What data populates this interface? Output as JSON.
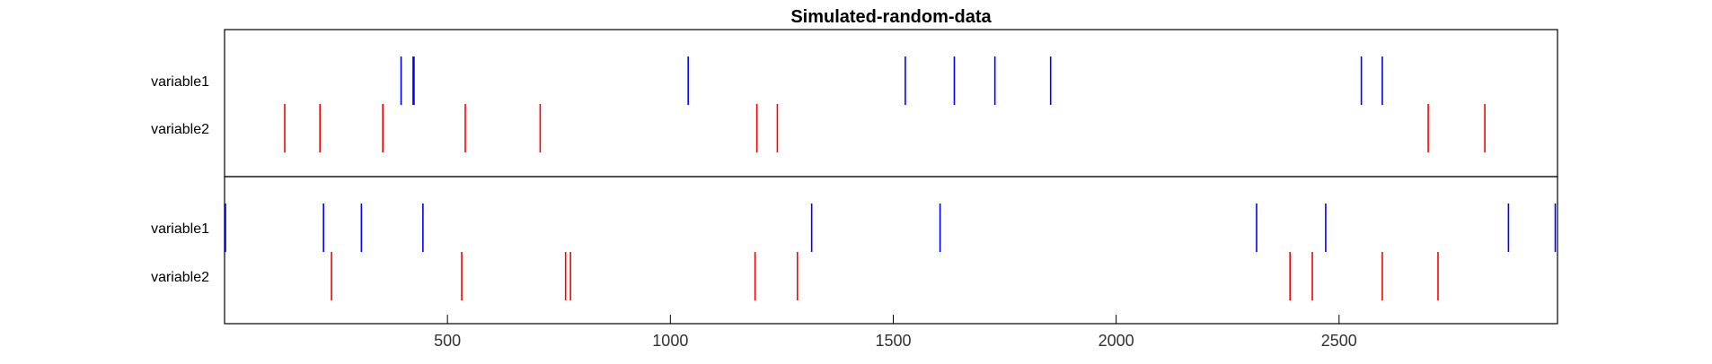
{
  "chart_data": {
    "type": "event-raster",
    "title": "Simulated-random-data",
    "xlim": [
      0,
      2990
    ],
    "xticks": [
      500,
      1000,
      1500,
      2000,
      2500
    ],
    "grid": false,
    "colors": {
      "variable1": "#0000ff",
      "variable2": "#ff0000",
      "axis": "#000000"
    },
    "panels": [
      {
        "rows": [
          {
            "label": "variable1",
            "color": "#0000ff",
            "events": [
              396,
              423,
              425,
              1040,
              1527,
              1637,
              1728,
              1853,
              2550,
              2597
            ]
          },
          {
            "label": "variable2",
            "color": "#ff0000",
            "events": [
              135,
              214,
              355,
              540,
              708,
              1194,
              1240,
              2700,
              2827
            ]
          }
        ]
      },
      {
        "rows": [
          {
            "label": "variable1",
            "color": "#0000ff",
            "events": [
              2,
              222,
              307,
              445,
              1317,
              1605,
              2315,
              2470,
              2880,
              2985
            ]
          },
          {
            "label": "variable2",
            "color": "#ff0000",
            "events": [
              240,
              532,
              765,
              776,
              1190,
              1285,
              2390,
              2440,
              2597,
              2722
            ]
          }
        ]
      }
    ]
  }
}
